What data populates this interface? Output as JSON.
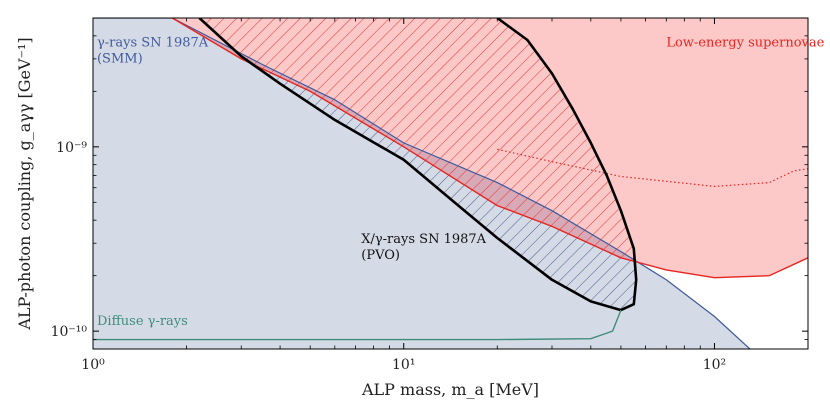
{
  "chart_data": {
    "type": "area",
    "title": "",
    "xlabel": "ALP mass, m_a [MeV]",
    "ylabel": "ALP-photon coupling, g_aγγ [GeV⁻¹]",
    "x_scale": "log",
    "y_scale": "log",
    "xlim": [
      1,
      200
    ],
    "ylim": [
      8e-11,
      5e-09
    ],
    "x_ticks": [
      {
        "value": 1,
        "label": "10⁰"
      },
      {
        "value": 10,
        "label": "10¹"
      },
      {
        "value": 100,
        "label": "10²"
      }
    ],
    "y_ticks": [
      {
        "value": 1e-10,
        "label": "10⁻¹⁰"
      },
      {
        "value": 1e-09,
        "label": "10⁻⁹"
      }
    ],
    "grid": false,
    "regions": [
      {
        "name": "γ-rays SN 1987A (SMM)",
        "color": "#d5dbe6",
        "edge_color": "#3f5a9e",
        "boundary": [
          [
            1,
            5e-09
          ],
          [
            1.8,
            5e-09
          ],
          [
            3.5,
            2.8e-09
          ],
          [
            6,
            1.8e-09
          ],
          [
            10,
            1.05e-09
          ],
          [
            20,
            6.4e-10
          ],
          [
            30,
            4.5e-10
          ],
          [
            50,
            2.7e-10
          ],
          [
            70,
            1.9e-10
          ],
          [
            100,
            1.2e-10
          ],
          [
            130,
            8e-11
          ]
        ]
      },
      {
        "name": "Low-energy supernovae",
        "color": "#fcc8c8",
        "edge_color": "#e8241f",
        "boundary": [
          [
            1.8,
            5e-09
          ],
          [
            3,
            3e-09
          ],
          [
            5,
            2e-09
          ],
          [
            10,
            1e-09
          ],
          [
            20,
            4.8e-10
          ],
          [
            30,
            3.7e-10
          ],
          [
            50,
            2.5e-10
          ],
          [
            70,
            2.15e-10
          ],
          [
            100,
            1.95e-10
          ],
          [
            150,
            2e-10
          ],
          [
            200,
            2.5e-10
          ]
        ],
        "boundary_dotted": [
          [
            20,
            9.7e-10
          ],
          [
            30,
            8.3e-10
          ],
          [
            50,
            6.9e-10
          ],
          [
            70,
            6.5e-10
          ],
          [
            100,
            6.1e-10
          ],
          [
            150,
            6.4e-10
          ],
          [
            180,
            7.4e-10
          ],
          [
            200,
            7.6e-10
          ]
        ]
      },
      {
        "name": "X/γ-rays SN 1987A (PVO)",
        "color": "#000000",
        "hatch_colors": {
          "inside_supernova": "#e8241f",
          "outside": "#3a4d7c"
        },
        "boundary": [
          [
            2.2,
            5e-09
          ],
          [
            3,
            3.1e-09
          ],
          [
            4,
            2.2e-09
          ],
          [
            6,
            1.4e-09
          ],
          [
            10,
            8.5e-10
          ],
          [
            15,
            4.8e-10
          ],
          [
            20,
            3.2e-10
          ],
          [
            30,
            1.9e-10
          ],
          [
            40,
            1.45e-10
          ],
          [
            50,
            1.3e-10
          ],
          [
            55,
            1.4e-10
          ],
          [
            56,
            1.9e-10
          ],
          [
            55,
            2.8e-10
          ],
          [
            50,
            4.5e-10
          ],
          [
            45,
            7e-10
          ],
          [
            40,
            1.05e-09
          ],
          [
            35,
            1.6e-09
          ],
          [
            30,
            2.5e-09
          ],
          [
            25,
            3.8e-09
          ],
          [
            20,
            5e-09
          ]
        ]
      },
      {
        "name": "Diffuse γ-rays",
        "color": "#3d8c7a",
        "boundary": [
          [
            1,
            9e-11
          ],
          [
            20,
            9e-11
          ],
          [
            40,
            9.1e-11
          ],
          [
            47,
            1e-10
          ],
          [
            50,
            1.3e-10
          ]
        ]
      }
    ],
    "annotations": [
      {
        "text_lines": [
          "γ-rays SN 1987A",
          "(SMM)"
        ],
        "color": "#3f5a9e",
        "x": 1.03,
        "y": 3.5e-09
      },
      {
        "text_lines": [
          "Low-energy supernovae"
        ],
        "color": "#e8241f",
        "x": 70,
        "y": 3.5e-09
      },
      {
        "text_lines": [
          "X/γ-rays SN 1987A",
          "(PVO)"
        ],
        "color": "#111111",
        "x": 7.3,
        "y": 3e-10
      },
      {
        "text_lines": [
          "Diffuse γ-rays"
        ],
        "color": "#3d8c7a",
        "x": 1.03,
        "y": 1.08e-10
      }
    ]
  }
}
